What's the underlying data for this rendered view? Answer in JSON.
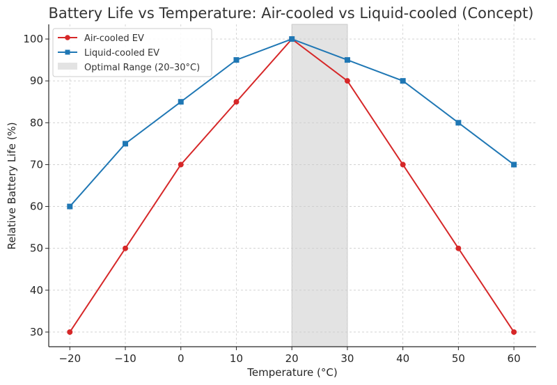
{
  "chart_data": {
    "type": "line",
    "title": "Battery Life vs Temperature: Air-cooled vs Liquid-cooled (Concept)",
    "xlabel": "Temperature (°C)",
    "ylabel": "Relative Battery Life (%)",
    "x": [
      -20,
      -10,
      0,
      10,
      20,
      30,
      40,
      50,
      60
    ],
    "xlim": [
      -23.8,
      64
    ],
    "ylim": [
      26.5,
      103.5
    ],
    "xticks": [
      -20,
      -10,
      0,
      10,
      20,
      30,
      40,
      50,
      60
    ],
    "xtick_labels": [
      "−20",
      "−10",
      "0",
      "10",
      "20",
      "30",
      "40",
      "50",
      "60"
    ],
    "yticks": [
      30,
      40,
      50,
      60,
      70,
      80,
      90,
      100
    ],
    "ytick_labels": [
      "30",
      "40",
      "50",
      "60",
      "70",
      "80",
      "90",
      "100"
    ],
    "grid": true,
    "legend_position": "top-left",
    "series": [
      {
        "name": "Air-cooled EV",
        "color": "#d62728",
        "marker": "circle",
        "values": [
          30,
          50,
          70,
          85,
          100,
          90,
          70,
          50,
          30
        ]
      },
      {
        "name": "Liquid-cooled EV",
        "color": "#1f77b4",
        "marker": "square",
        "values": [
          60,
          75,
          85,
          95,
          100,
          95,
          90,
          80,
          70
        ]
      }
    ],
    "shaded_regions": [
      {
        "name": "Optimal Range (20–30°C)",
        "x_start": 20,
        "x_end": 30,
        "color": "#d9d9d9"
      }
    ]
  }
}
